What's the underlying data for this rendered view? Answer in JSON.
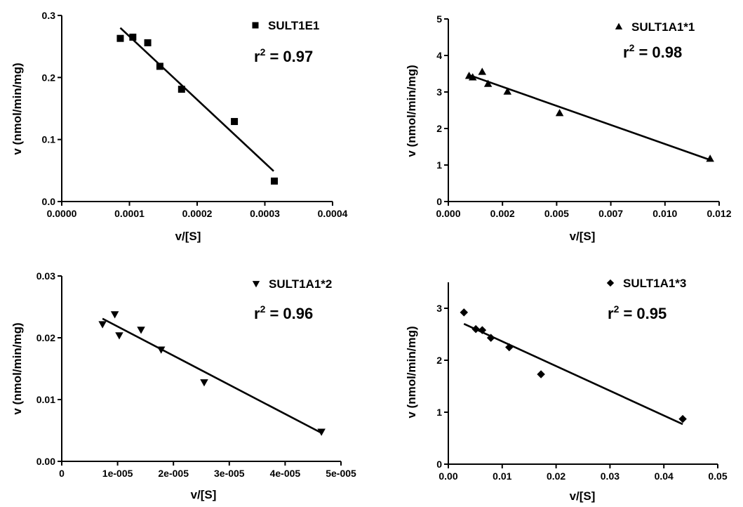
{
  "chart_data": [
    {
      "type": "scatter",
      "xlabel": "v/[S]",
      "ylabel": "v (nmol/min/mg)",
      "xlim": [
        0,
        0.0004
      ],
      "ylim": [
        0,
        0.3
      ],
      "xticks": [
        "0.0000",
        "0.0001",
        "0.0002",
        "0.0003",
        "0.0004"
      ],
      "xtick_values": [
        0,
        0.0001,
        0.0002,
        0.0003,
        0.0004
      ],
      "yticks": [
        "0.0",
        "0.1",
        "0.2",
        "0.3"
      ],
      "ytick_values": [
        0,
        0.1,
        0.2,
        0.3
      ],
      "series": [
        {
          "name": "SULT1E1",
          "marker": "square",
          "points": [
            [
              8.65e-05,
              0.263
            ],
            [
              0.000105,
              0.265
            ],
            [
              0.000127,
              0.256
            ],
            [
              0.000145,
              0.218
            ],
            [
              0.000177,
              0.181
            ],
            [
              0.000255,
              0.129
            ],
            [
              0.000314,
              0.033
            ]
          ]
        }
      ],
      "fit_line": [
        [
          8.65e-05,
          0.28
        ],
        [
          0.000313,
          0.049
        ]
      ],
      "r2_label": "0.97"
    },
    {
      "type": "scatter",
      "xlabel": "v/[S]",
      "ylabel": "v (nmol/min/mg)",
      "xlim": [
        0,
        0.012
      ],
      "ylim": [
        0,
        5
      ],
      "xticks": [
        "0.000",
        "0.002",
        "0.005",
        "0.007",
        "0.010",
        "0.012"
      ],
      "xtick_values": [
        0,
        0.0024,
        0.0048,
        0.0072,
        0.0096,
        0.012
      ],
      "yticks": [
        "0",
        "1",
        "2",
        "3",
        "4",
        "5"
      ],
      "ytick_values": [
        0,
        1,
        2,
        3,
        4,
        5
      ],
      "series": [
        {
          "name": "SULT1A1*1",
          "marker": "triangle-up",
          "points": [
            [
              0.00092,
              3.44
            ],
            [
              0.00108,
              3.4
            ],
            [
              0.0015,
              3.55
            ],
            [
              0.00176,
              3.22
            ],
            [
              0.00262,
              3.01
            ],
            [
              0.00493,
              2.42
            ],
            [
              0.0116,
              1.17
            ]
          ]
        }
      ],
      "fit_line": [
        [
          0.00085,
          3.48
        ],
        [
          0.0116,
          1.14
        ]
      ],
      "r2_label": "0.98"
    },
    {
      "type": "scatter",
      "xlabel": "v/[S]",
      "ylabel": "v (nmol/min/mg)",
      "xlim": [
        0,
        5e-05
      ],
      "ylim": [
        0,
        0.03
      ],
      "xticks": [
        "0",
        "1e-005",
        "2e-005",
        "3e-005",
        "4e-005",
        "5e-005"
      ],
      "xtick_values": [
        0,
        1e-05,
        2e-05,
        3e-05,
        4e-05,
        5e-05
      ],
      "yticks": [
        "0.00",
        "0.01",
        "0.02",
        "0.03"
      ],
      "ytick_values": [
        0,
        0.01,
        0.02,
        0.03
      ],
      "series": [
        {
          "name": "SULT1A1*2",
          "marker": "triangle-down",
          "points": [
            [
              7.3e-06,
              0.0222
            ],
            [
              9.5e-06,
              0.0238
            ],
            [
              1.03e-05,
              0.0204
            ],
            [
              1.42e-05,
              0.0213
            ],
            [
              1.78e-05,
              0.0181
            ],
            [
              2.55e-05,
              0.0128
            ],
            [
              4.65e-05,
              0.0048
            ]
          ]
        }
      ],
      "fit_line": [
        [
          7.3e-06,
          0.0231
        ],
        [
          4.65e-05,
          0.0046
        ]
      ],
      "r2_label": "0.96"
    },
    {
      "type": "scatter",
      "xlabel": "v/[S]",
      "ylabel": "v (nmol/min/mg)",
      "xlim": [
        0,
        0.05
      ],
      "ylim": [
        0,
        3.5
      ],
      "xticks": [
        "0.00",
        "0.01",
        "0.02",
        "0.03",
        "0.04",
        "0.05"
      ],
      "xtick_values": [
        0,
        0.01,
        0.02,
        0.03,
        0.04,
        0.05
      ],
      "yticks": [
        "0",
        "1",
        "2",
        "3"
      ],
      "ytick_values": [
        0,
        1,
        2,
        3
      ],
      "series": [
        {
          "name": "SULT1A1*3",
          "marker": "diamond",
          "points": [
            [
              0.0029,
              2.92
            ],
            [
              0.0051,
              2.6
            ],
            [
              0.0063,
              2.58
            ],
            [
              0.0079,
              2.43
            ],
            [
              0.0113,
              2.25
            ],
            [
              0.0172,
              1.73
            ],
            [
              0.0435,
              0.87
            ]
          ]
        }
      ],
      "fit_line": [
        [
          0.0029,
          2.7
        ],
        [
          0.0435,
          0.77
        ]
      ],
      "r2_label": "0.95"
    }
  ]
}
